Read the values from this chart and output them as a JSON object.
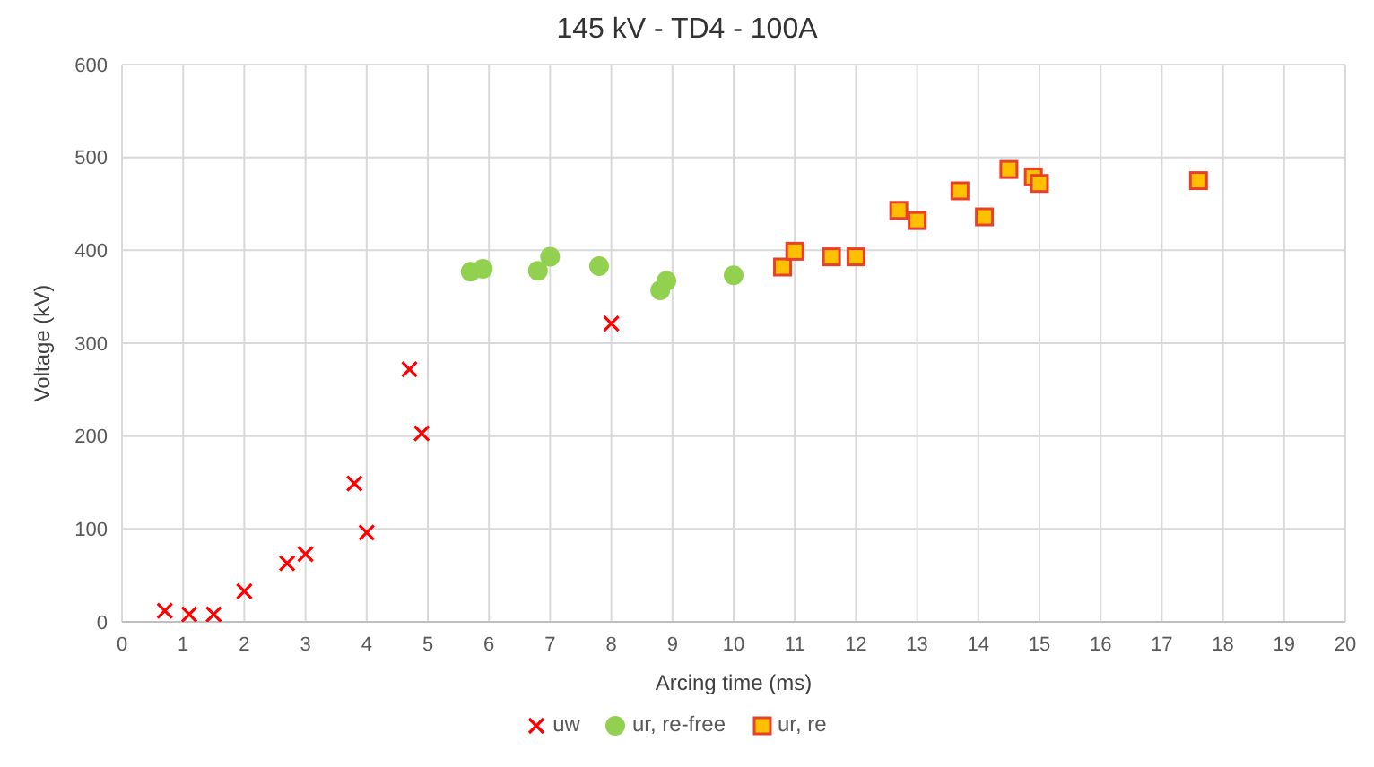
{
  "chart_data": {
    "type": "scatter",
    "title": "145 kV - TD4 - 100A",
    "xlabel": "Arcing time (ms)",
    "ylabel": "Voltage (kV)",
    "xlim": [
      0,
      20
    ],
    "xticks": [
      0,
      1,
      2,
      3,
      4,
      5,
      6,
      7,
      8,
      9,
      10,
      11,
      12,
      13,
      14,
      15,
      16,
      17,
      18,
      19,
      20
    ],
    "ylim": [
      0,
      600
    ],
    "yticks": [
      0,
      100,
      200,
      300,
      400,
      500,
      600
    ],
    "grid": true,
    "legend": "bottom",
    "series": [
      {
        "name": "uw",
        "color": "#ff0000",
        "marker": "cross",
        "x": [
          0.7,
          1.1,
          1.5,
          2,
          2.7,
          3,
          3.8,
          4,
          4.7,
          4.9,
          8
        ],
        "values": [
          12,
          8,
          8,
          33,
          63,
          73,
          149,
          96,
          272,
          203,
          321
        ]
      },
      {
        "name": "ur, re-free",
        "color": "#92d050",
        "marker": "circle",
        "x": [
          5.7,
          5.9,
          6.8,
          7,
          7.8,
          8.8,
          8.9,
          10
        ],
        "values": [
          377,
          380,
          378,
          393,
          383,
          357,
          367,
          373
        ]
      },
      {
        "name": "ur, re",
        "color": "#ffc000",
        "marker": "square",
        "x": [
          10.8,
          11,
          11.6,
          12,
          12.7,
          13,
          13.7,
          14.1,
          14.5,
          14.9,
          15,
          17.6
        ],
        "values": [
          382,
          399,
          393,
          393,
          443,
          432,
          464,
          436,
          487,
          479,
          472,
          475
        ]
      }
    ]
  }
}
